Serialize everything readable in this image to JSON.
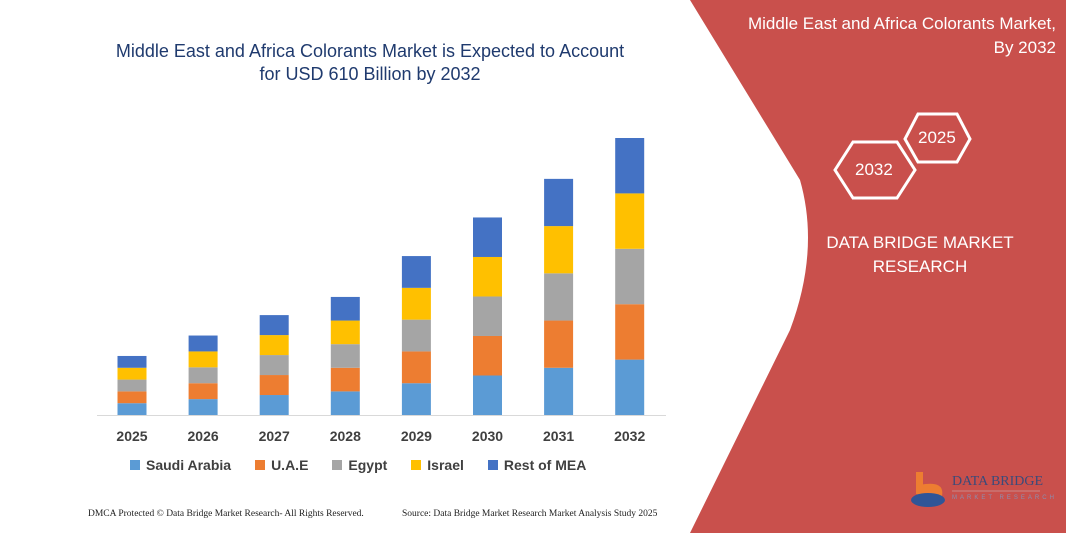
{
  "colors": {
    "panel": "#c9504c",
    "saudi": "#5b9bd5",
    "uae": "#ed7d31",
    "egypt": "#a5a5a5",
    "israel": "#ffc000",
    "rest": "#4472c4"
  },
  "right_panel": {
    "title_line1": "Middle East and Africa Colorants Market,",
    "title_line2": "By 2032",
    "hex_front": "2032",
    "hex_back": "2025",
    "brand_line1": "DATA BRIDGE MARKET",
    "brand_line2": "RESEARCH",
    "logo_text": "DATA BRIDGE",
    "logo_sub": "MARKET RESEARCH"
  },
  "footer": {
    "left": "DMCA Protected © Data Bridge Market Research- All Rights Reserved.",
    "right": "Source: Data Bridge Market Research Market Analysis Study 2025"
  },
  "chart_data": {
    "type": "bar",
    "stacked": true,
    "title_line1": "Middle East and Africa Colorants Market is Expected to Account",
    "title_line2": "for USD 610 Billion by 2032",
    "categories": [
      "2025",
      "2026",
      "2027",
      "2028",
      "2029",
      "2030",
      "2031",
      "2032"
    ],
    "series": [
      {
        "name": "Saudi Arabia",
        "values": [
          26,
          35,
          44,
          52,
          70,
          87,
          104,
          122
        ]
      },
      {
        "name": "U.A.E",
        "values": [
          26,
          35,
          44,
          52,
          70,
          87,
          104,
          122
        ]
      },
      {
        "name": "Egypt",
        "values": [
          26,
          35,
          44,
          52,
          70,
          87,
          104,
          122
        ]
      },
      {
        "name": "Israel",
        "values": [
          26,
          35,
          44,
          52,
          70,
          87,
          104,
          122
        ]
      },
      {
        "name": "Rest of MEA",
        "values": [
          26,
          35,
          44,
          52,
          70,
          87,
          104,
          122
        ]
      }
    ],
    "legend": "bottom",
    "grid": false
  }
}
